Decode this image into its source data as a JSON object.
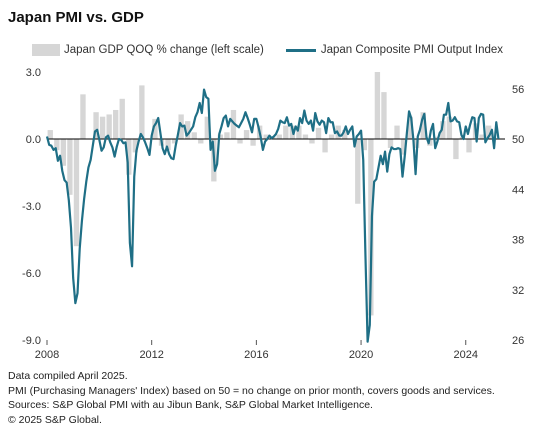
{
  "title": "Japan PMI vs. GDP",
  "legend": {
    "gdp": "Japan GDP QOQ % change (left scale)",
    "pmi": "Japan Composite PMI Output Index"
  },
  "colors": {
    "gdp_bars": "#d6d6d6",
    "pmi_line": "#1f6f86",
    "zero_line": "#000000"
  },
  "notes": [
    "Data compiled April 2025.",
    "PMI (Purchasing Managers' Index) based on 50 = no change on prior month, covers goods and services.",
    "Sources: S&P Global PMI with au Jibun Bank, S&P Global Market Intelligence.",
    "© 2025 S&P Global."
  ],
  "chart_data": {
    "type": "bar+line",
    "grid": false,
    "legend_position": "top",
    "x_axis": {
      "range": [
        2008.0,
        2025.5
      ],
      "ticks": [
        2008,
        2012,
        2016,
        2020,
        2024
      ],
      "tick_labels": [
        "2008",
        "2012",
        "2016",
        "2020",
        "2024"
      ]
    },
    "y_left": {
      "range": [
        -9.0,
        3.0
      ],
      "ticks": [
        3.0,
        0.0,
        -3.0,
        -6.0,
        -9.0
      ],
      "tick_labels": [
        "3.0",
        "0.0",
        "-3.0",
        "-6.0",
        "-9.0"
      ]
    },
    "y_right": {
      "range": [
        26,
        58
      ],
      "ticks": [
        56,
        50,
        44,
        38,
        32,
        26
      ],
      "tick_labels": [
        "56",
        "50",
        "44",
        "38",
        "32",
        "26"
      ]
    },
    "series": [
      {
        "name": "Japan GDP QOQ % change (left scale)",
        "kind": "bar",
        "axis": "left",
        "quarters": [
          "2008Q1",
          "2008Q2",
          "2008Q3",
          "2008Q4",
          "2009Q1",
          "2009Q2",
          "2009Q3",
          "2009Q4",
          "2010Q1",
          "2010Q2",
          "2010Q3",
          "2010Q4",
          "2011Q1",
          "2011Q2",
          "2011Q3",
          "2011Q4",
          "2012Q1",
          "2012Q2",
          "2012Q3",
          "2012Q4",
          "2013Q1",
          "2013Q2",
          "2013Q3",
          "2013Q4",
          "2014Q1",
          "2014Q2",
          "2014Q3",
          "2014Q4",
          "2015Q1",
          "2015Q2",
          "2015Q3",
          "2015Q4",
          "2016Q1",
          "2016Q2",
          "2016Q3",
          "2016Q4",
          "2017Q1",
          "2017Q2",
          "2017Q3",
          "2017Q4",
          "2018Q1",
          "2018Q2",
          "2018Q3",
          "2018Q4",
          "2019Q1",
          "2019Q2",
          "2019Q3",
          "2019Q4",
          "2020Q1",
          "2020Q2",
          "2020Q3",
          "2020Q4",
          "2021Q1",
          "2021Q2",
          "2021Q3",
          "2021Q4",
          "2022Q1",
          "2022Q2",
          "2022Q3",
          "2022Q4",
          "2023Q1",
          "2023Q2",
          "2023Q3",
          "2023Q4",
          "2024Q1",
          "2024Q2",
          "2024Q3",
          "2024Q4"
        ],
        "values": [
          0.4,
          -0.5,
          -1.2,
          -2.5,
          -4.8,
          2.0,
          0.0,
          1.2,
          1.0,
          1.1,
          1.3,
          1.8,
          -1.6,
          -0.6,
          2.4,
          0.0,
          0.9,
          -0.3,
          -0.5,
          -0.2,
          1.1,
          0.8,
          0.3,
          -0.2,
          1.0,
          -1.9,
          0.2,
          0.3,
          1.3,
          -0.2,
          0.4,
          -0.3,
          0.6,
          0.2,
          0.1,
          0.2,
          0.6,
          0.6,
          0.6,
          0.2,
          -0.2,
          0.5,
          -0.6,
          0.2,
          0.6,
          0.4,
          0.0,
          -2.9,
          -0.5,
          -7.9,
          3.0,
          2.1,
          -0.4,
          0.6,
          -0.7,
          1.0,
          -0.4,
          1.2,
          -0.3,
          0.1,
          0.8,
          1.0,
          -0.9,
          0.1,
          -0.6,
          0.7,
          0.2,
          0.6
        ]
      },
      {
        "name": "Japan Composite PMI Output Index",
        "kind": "line",
        "axis": "right",
        "monthly_from": "2008-01",
        "values": [
          50.3,
          49.3,
          49.2,
          48.7,
          48.9,
          47.4,
          48.0,
          46.2,
          45.1,
          44.8,
          42.7,
          39.4,
          33.4,
          30.4,
          31.6,
          36.9,
          40.2,
          42.8,
          44.9,
          46.6,
          47.5,
          49.2,
          50.9,
          51.1,
          49.9,
          48.6,
          49.0,
          50.2,
          50.4,
          49.6,
          49.0,
          47.9,
          49.1,
          50.0,
          49.9,
          49.5,
          49.6,
          47.2,
          37.6,
          34.8,
          45.5,
          48.6,
          49.7,
          50.6,
          50.2,
          49.6,
          48.9,
          48.1,
          50.4,
          51.5,
          51.9,
          52.5,
          50.7,
          48.9,
          48.2,
          49.1,
          48.2,
          47.7,
          47.6,
          49.2,
          50.5,
          51.9,
          51.5,
          51.6,
          50.4,
          50.7,
          51.1,
          51.5,
          52.6,
          53.2,
          54.3,
          53.1,
          55.9,
          55.0,
          54.8,
          48.7,
          49.7,
          46.2,
          47.0,
          50.6,
          51.5,
          52.5,
          52.8,
          51.5,
          52.4,
          52.1,
          51.8,
          51.6,
          51.4,
          51.9,
          52.4,
          53.2,
          52.5,
          51.7,
          50.8,
          52.4,
          52.4,
          51.4,
          50.2,
          48.7,
          49.7,
          50.0,
          50.4,
          50.1,
          50.3,
          50.6,
          51.2,
          52.2,
          52.0,
          51.9,
          52.6,
          51.6,
          51.8,
          50.6,
          51.5,
          51.0,
          52.5,
          51.9,
          53.4,
          52.2,
          51.8,
          52.2,
          51.0,
          53.1,
          52.1,
          51.7,
          52.2,
          52.0,
          50.7,
          52.5,
          52.0,
          52.0,
          50.7,
          50.9,
          50.4,
          50.4,
          50.8,
          51.5,
          50.6,
          51.1,
          51.5,
          49.1,
          50.3,
          50.6,
          51.0,
          47.5,
          36.2,
          25.8,
          27.8,
          40.8,
          44.9,
          45.2,
          46.6,
          48.0,
          47.0,
          48.5,
          46.1,
          48.2,
          49.0,
          48.8,
          48.8,
          48.9,
          48.8,
          45.5,
          47.9,
          50.7,
          53.3,
          52.5,
          49.9,
          45.8,
          50.3,
          51.1,
          52.3,
          53.0,
          50.2,
          49.5,
          51.0,
          51.8,
          48.9,
          49.7,
          50.7,
          51.1,
          52.9,
          52.9,
          54.3,
          52.1,
          52.2,
          52.6,
          52.1,
          52.0,
          50.5,
          50.0,
          51.5,
          50.6,
          51.7,
          52.6,
          52.5,
          49.7,
          52.5,
          53.0,
          52.9,
          49.6,
          50.1,
          50.5,
          51.1,
          48.9,
          52.0,
          50.0
        ]
      }
    ]
  }
}
